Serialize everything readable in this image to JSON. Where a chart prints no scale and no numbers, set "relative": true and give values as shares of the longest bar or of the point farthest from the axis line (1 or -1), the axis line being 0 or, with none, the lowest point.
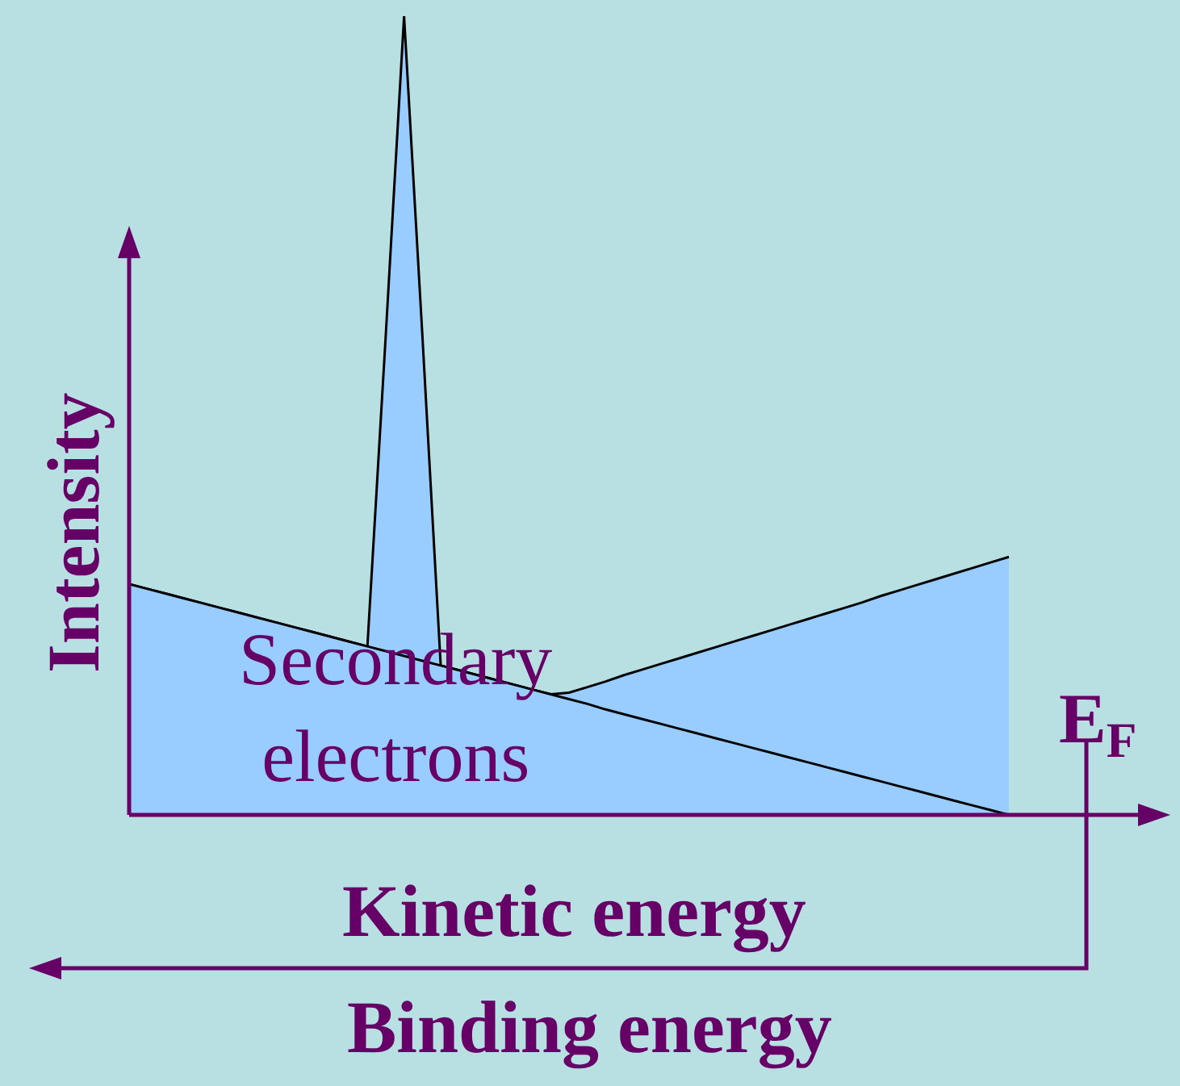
{
  "chart_data": {
    "type": "area",
    "relative": true,
    "xlabel": "Kinetic energy",
    "ylabel": "Intensity",
    "annotations": [
      "Secondary\nelectrons",
      "E$_{F}$",
      "Binding energy"
    ],
    "categories": [
      null,
      null,
      null,
      null,
      null,
      null,
      null,
      null,
      null,
      null,
      null,
      null,
      null,
      null,
      null,
      null,
      null,
      null,
      null,
      null,
      null,
      null,
      null,
      null,
      null,
      null,
      null,
      null,
      null,
      null,
      null,
      null,
      null,
      null,
      null,
      null,
      null,
      null,
      null,
      null,
      null,
      null,
      null,
      null,
      null,
      null,
      null,
      null,
      null
    ],
    "series": [
      {
        "color": "#99ccff",
        "values": [
          0.289,
          0.283,
          0.277,
          0.271,
          0.265,
          0.259,
          0.253,
          0.247,
          0.241,
          0.235,
          0.229,
          0.223,
          0.217,
          0.211,
          0.205,
          0.199,
          0.193,
          0.187,
          0.181,
          0.175,
          0.169,
          0.163,
          0.157,
          0.151,
          0.145,
          0.139,
          0.132,
          0.126,
          0.12,
          0.114,
          0.108,
          0.102,
          0.096,
          0.09,
          0.084,
          0.078,
          0.072,
          0.066,
          0.06,
          0.054,
          0.048,
          0.042,
          0.036,
          0.03,
          0.024,
          0.018,
          0.012,
          0.006,
          0
        ]
      },
      {
        "color": "#99ccff",
        "values": [
          0.289,
          0.283,
          0.277,
          0.271,
          0.265,
          0.259,
          0.253,
          0.247,
          0.241,
          0.235,
          0.229,
          0.223,
          0.217,
          0.211,
          0.6,
          1,
          0.6,
          0.187,
          0.181,
          0.175,
          0.169,
          0.163,
          0.157,
          0.151,
          0.153,
          0.16,
          0.167,
          0.175,
          0.182,
          0.189,
          0.196,
          0.203,
          0.21,
          0.217,
          0.224,
          0.231,
          0.238,
          0.245,
          0.252,
          0.259,
          0.266,
          0.274,
          0.281,
          0.288,
          0.295,
          0.302,
          0.309,
          0.316,
          0.323
        ]
      }
    ]
  }
}
